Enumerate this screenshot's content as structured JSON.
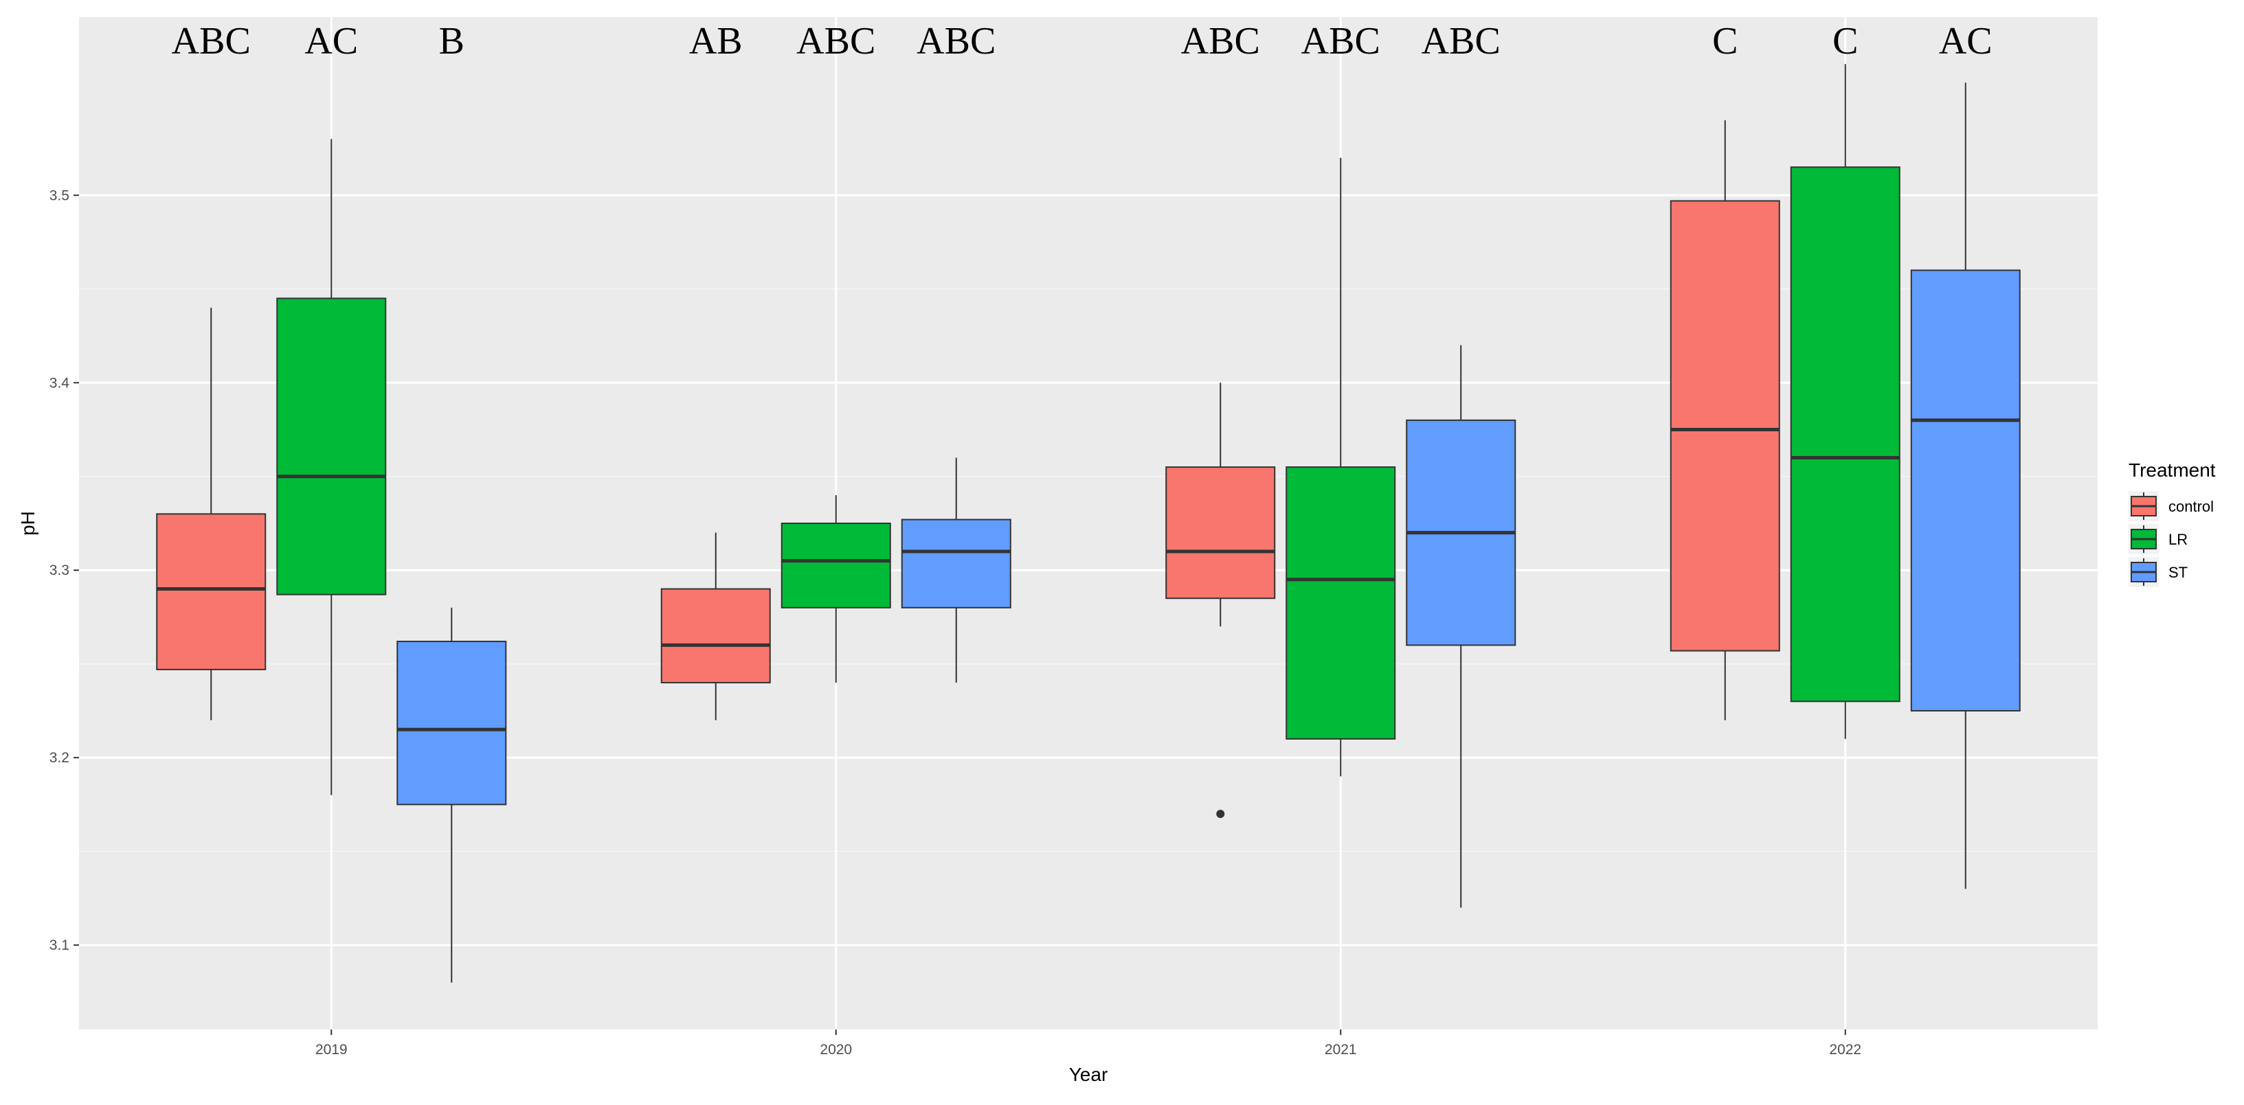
{
  "chart_data": {
    "type": "boxplot",
    "title": "",
    "xlabel": "Year",
    "ylabel": "pH",
    "categories": [
      "2019",
      "2020",
      "2021",
      "2022"
    ],
    "ylim": [
      3.055,
      3.595
    ],
    "yticks": [
      3.1,
      3.2,
      3.3,
      3.4,
      3.5
    ],
    "ytick_labels": [
      "3.1",
      "3.2",
      "3.3",
      "3.4",
      "3.5"
    ],
    "grid": true,
    "legend": {
      "title": "Treatment",
      "position": "right",
      "items": [
        {
          "name": "control",
          "color": "#F8766D"
        },
        {
          "name": "LR",
          "color": "#00BA38"
        },
        {
          "name": "ST",
          "color": "#619CFF"
        }
      ]
    },
    "series": [
      {
        "name": "control",
        "color": "#F8766D",
        "boxes": [
          {
            "min": 3.22,
            "q1": 3.247,
            "median": 3.29,
            "q3": 3.33,
            "max": 3.44,
            "outliers": []
          },
          {
            "min": 3.22,
            "q1": 3.24,
            "median": 3.26,
            "q3": 3.29,
            "max": 3.32,
            "outliers": []
          },
          {
            "min": 3.27,
            "q1": 3.285,
            "median": 3.31,
            "q3": 3.355,
            "max": 3.4,
            "outliers": [
              3.17
            ]
          },
          {
            "min": 3.22,
            "q1": 3.257,
            "median": 3.375,
            "q3": 3.497,
            "max": 3.54,
            "outliers": []
          }
        ]
      },
      {
        "name": "LR",
        "color": "#00BA38",
        "boxes": [
          {
            "min": 3.18,
            "q1": 3.287,
            "median": 3.35,
            "q3": 3.445,
            "max": 3.53,
            "outliers": []
          },
          {
            "min": 3.24,
            "q1": 3.28,
            "median": 3.305,
            "q3": 3.325,
            "max": 3.34,
            "outliers": []
          },
          {
            "min": 3.19,
            "q1": 3.21,
            "median": 3.295,
            "q3": 3.355,
            "max": 3.52,
            "outliers": []
          },
          {
            "min": 3.21,
            "q1": 3.23,
            "median": 3.36,
            "q3": 3.515,
            "max": 3.57,
            "outliers": []
          }
        ]
      },
      {
        "name": "ST",
        "color": "#619CFF",
        "boxes": [
          {
            "min": 3.08,
            "q1": 3.175,
            "median": 3.215,
            "q3": 3.262,
            "max": 3.28,
            "outliers": []
          },
          {
            "min": 3.24,
            "q1": 3.28,
            "median": 3.31,
            "q3": 3.327,
            "max": 3.36,
            "outliers": []
          },
          {
            "min": 3.12,
            "q1": 3.26,
            "median": 3.32,
            "q3": 3.38,
            "max": 3.42,
            "outliers": []
          },
          {
            "min": 3.13,
            "q1": 3.225,
            "median": 3.38,
            "q3": 3.46,
            "max": 3.56,
            "outliers": []
          }
        ]
      }
    ],
    "annotations": [
      [
        "ABC",
        "AC",
        "B"
      ],
      [
        "AB",
        "ABC",
        "ABC"
      ],
      [
        "ABC",
        "ABC",
        "ABC"
      ],
      [
        "C",
        "C",
        "AC"
      ]
    ],
    "colors": {
      "panel_background": "#EBEBEB",
      "grid_major": "#FFFFFF",
      "grid_minor": "#F5F5F5",
      "box_outline": "#333333",
      "whisker": "#333333"
    }
  }
}
